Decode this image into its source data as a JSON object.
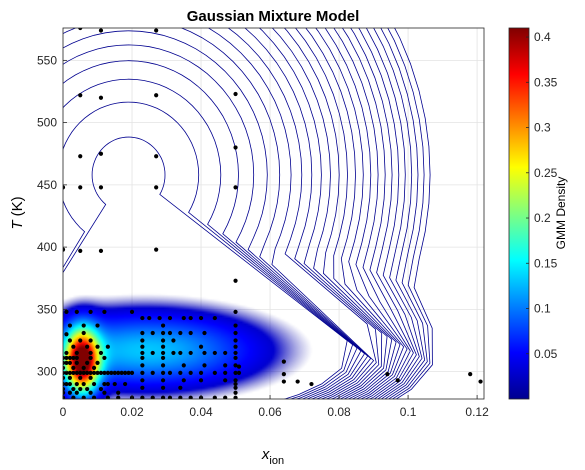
{
  "chart_data": {
    "type": "scatter",
    "title": "Gaussian Mixture Model",
    "xlabel_main": "x",
    "xlabel_sub": "ion",
    "ylabel_main": "T",
    "ylabel_unit": " (K)",
    "colorbar_label": "GMM Density",
    "xlim": [
      0,
      0.122
    ],
    "ylim": [
      278,
      576
    ],
    "x_ticks": [
      0,
      0.02,
      0.04,
      0.06,
      0.08,
      0.1,
      0.12
    ],
    "x_tick_labels": [
      "0",
      "0.02",
      "0.04",
      "0.06",
      "0.08",
      "0.1",
      "0.12"
    ],
    "y_ticks": [
      300,
      350,
      400,
      450,
      500,
      550
    ],
    "y_tick_labels": [
      "300",
      "350",
      "400",
      "450",
      "500",
      "550"
    ],
    "colorbar_ticks": [
      0.05,
      0.1,
      0.15,
      0.2,
      0.25,
      0.3,
      0.35,
      0.4
    ],
    "colorbar_tick_labels": [
      "0.05",
      "0.1",
      "0.15",
      "0.2",
      "0.25",
      "0.3",
      "0.35",
      "0.4"
    ],
    "colorbar_range": [
      0,
      0.41
    ],
    "colormap": "jet",
    "contour_color": "#00008f",
    "point_color": "#000000",
    "grid": true,
    "density_components": [
      {
        "mu_x": 0.0055,
        "mu_y": 308,
        "sx": 0.0033,
        "sy": 17,
        "peak": 0.4
      },
      {
        "mu_x": 0.024,
        "mu_y": 317,
        "sx": 0.022,
        "sy": 20,
        "peak": 0.13
      },
      {
        "mu_x": 0.019,
        "mu_y": 458,
        "sx": 0.033,
        "sy": 95,
        "peak": 0.004
      }
    ],
    "points": [
      [
        0.005,
        576
      ],
      [
        0.011,
        574
      ],
      [
        0.027,
        574
      ],
      [
        0.005,
        522
      ],
      [
        0.011,
        520
      ],
      [
        0.027,
        522
      ],
      [
        0.05,
        523
      ],
      [
        0.005,
        473
      ],
      [
        0.011,
        475
      ],
      [
        0.027,
        473
      ],
      [
        0.05,
        480
      ],
      [
        0,
        448
      ],
      [
        0.005,
        448
      ],
      [
        0.011,
        448
      ],
      [
        0.027,
        448
      ],
      [
        0.05,
        448
      ],
      [
        0,
        398
      ],
      [
        0.005,
        397
      ],
      [
        0.011,
        397
      ],
      [
        0.027,
        398
      ],
      [
        0.05,
        373
      ],
      [
        0.001,
        348
      ],
      [
        0.004,
        348
      ],
      [
        0.008,
        348
      ],
      [
        0.012,
        348
      ],
      [
        0.02,
        348
      ],
      [
        0.023,
        343
      ],
      [
        0.025,
        343
      ],
      [
        0.028,
        343
      ],
      [
        0.031,
        343
      ],
      [
        0.035,
        343
      ],
      [
        0.037,
        343
      ],
      [
        0.04,
        343
      ],
      [
        0.044,
        343
      ],
      [
        0.05,
        348
      ],
      [
        0.002,
        337
      ],
      [
        0.006,
        337
      ],
      [
        0.01,
        337
      ],
      [
        0.029,
        337
      ],
      [
        0.05,
        337
      ],
      [
        0.001,
        330
      ],
      [
        0.006,
        331
      ],
      [
        0.023,
        331
      ],
      [
        0.026,
        331
      ],
      [
        0.029,
        331
      ],
      [
        0.031,
        331
      ],
      [
        0.034,
        331
      ],
      [
        0.037,
        331
      ],
      [
        0.041,
        331
      ],
      [
        0.05,
        331
      ],
      [
        0.002,
        325
      ],
      [
        0.005,
        325
      ],
      [
        0.008,
        325
      ],
      [
        0.023,
        325
      ],
      [
        0.029,
        325
      ],
      [
        0.032,
        325
      ],
      [
        0.05,
        325
      ],
      [
        0.003,
        320
      ],
      [
        0.007,
        320
      ],
      [
        0.01,
        320
      ],
      [
        0.013,
        320
      ],
      [
        0.023,
        320
      ],
      [
        0.029,
        320
      ],
      [
        0.04,
        320
      ],
      [
        0.05,
        320
      ],
      [
        0.001,
        315
      ],
      [
        0.004,
        315
      ],
      [
        0.008,
        315
      ],
      [
        0.011,
        315
      ],
      [
        0.023,
        315
      ],
      [
        0.026,
        315
      ],
      [
        0.029,
        315
      ],
      [
        0.032,
        315
      ],
      [
        0.034,
        315
      ],
      [
        0.037,
        315
      ],
      [
        0.041,
        315
      ],
      [
        0.044,
        315
      ],
      [
        0.047,
        315
      ],
      [
        0.05,
        315
      ],
      [
        0,
        311
      ],
      [
        0.001,
        311
      ],
      [
        0.002,
        311
      ],
      [
        0.003,
        311
      ],
      [
        0.004,
        311
      ],
      [
        0.008,
        311
      ],
      [
        0.012,
        311
      ],
      [
        0.023,
        311
      ],
      [
        0.029,
        311
      ],
      [
        0.05,
        311
      ],
      [
        0,
        307
      ],
      [
        0.001,
        307
      ],
      [
        0.002,
        307
      ],
      [
        0.004,
        307
      ],
      [
        0.007,
        307
      ],
      [
        0.01,
        307
      ],
      [
        0.023,
        305
      ],
      [
        0.029,
        305
      ],
      [
        0.035,
        305
      ],
      [
        0.041,
        305
      ],
      [
        0.047,
        305
      ],
      [
        0.05,
        305
      ],
      [
        0.051,
        304
      ],
      [
        0,
        303
      ],
      [
        0.003,
        303
      ],
      [
        0.006,
        303
      ],
      [
        0.009,
        303
      ],
      [
        0,
        299
      ],
      [
        0.001,
        299
      ],
      [
        0.002,
        299
      ],
      [
        0.003,
        299
      ],
      [
        0.004,
        299
      ],
      [
        0.005,
        299
      ],
      [
        0.006,
        299
      ],
      [
        0.007,
        299
      ],
      [
        0.008,
        299
      ],
      [
        0.009,
        299
      ],
      [
        0.01,
        299
      ],
      [
        0.011,
        299
      ],
      [
        0.012,
        299
      ],
      [
        0.013,
        299
      ],
      [
        0.014,
        299
      ],
      [
        0.015,
        299
      ],
      [
        0.016,
        299
      ],
      [
        0.017,
        299
      ],
      [
        0.018,
        299
      ],
      [
        0.019,
        299
      ],
      [
        0.02,
        299
      ],
      [
        0.023,
        299
      ],
      [
        0.026,
        299
      ],
      [
        0.029,
        299
      ],
      [
        0.031,
        299
      ],
      [
        0.034,
        299
      ],
      [
        0.037,
        299
      ],
      [
        0.04,
        299
      ],
      [
        0.044,
        299
      ],
      [
        0.047,
        299
      ],
      [
        0.05,
        299
      ],
      [
        0.051,
        299
      ],
      [
        0,
        295
      ],
      [
        0.002,
        295
      ],
      [
        0.005,
        295
      ],
      [
        0.008,
        295
      ],
      [
        0.023,
        293
      ],
      [
        0.029,
        293
      ],
      [
        0.035,
        293
      ],
      [
        0.04,
        293
      ],
      [
        0.047,
        293
      ],
      [
        0.05,
        293
      ],
      [
        0,
        290
      ],
      [
        0.001,
        290
      ],
      [
        0.002,
        290
      ],
      [
        0.004,
        290
      ],
      [
        0.006,
        290
      ],
      [
        0.009,
        290
      ],
      [
        0.012,
        290
      ],
      [
        0.013,
        290
      ],
      [
        0.015,
        290
      ],
      [
        0.018,
        290
      ],
      [
        0.05,
        290
      ],
      [
        0,
        286
      ],
      [
        0.003,
        286
      ],
      [
        0.005,
        286
      ],
      [
        0.007,
        286
      ],
      [
        0.011,
        286
      ],
      [
        0.023,
        287
      ],
      [
        0.029,
        287
      ],
      [
        0.034,
        287
      ],
      [
        0.05,
        287
      ],
      [
        0,
        283
      ],
      [
        0.002,
        283
      ],
      [
        0.004,
        283
      ],
      [
        0.008,
        283
      ],
      [
        0.012,
        283
      ],
      [
        0.016,
        283
      ],
      [
        0.05,
        283
      ],
      [
        0,
        279
      ],
      [
        0.003,
        279
      ],
      [
        0.006,
        279
      ],
      [
        0.009,
        279
      ],
      [
        0.013,
        279
      ],
      [
        0.016,
        279
      ],
      [
        0.02,
        279
      ],
      [
        0.023,
        279
      ],
      [
        0.026,
        279
      ],
      [
        0.029,
        279
      ],
      [
        0.031,
        279
      ],
      [
        0.034,
        279
      ],
      [
        0.037,
        279
      ],
      [
        0.04,
        279
      ],
      [
        0.044,
        279
      ],
      [
        0.047,
        279
      ],
      [
        0.05,
        279
      ],
      [
        0.064,
        308
      ],
      [
        0.064,
        298
      ],
      [
        0.064,
        292
      ],
      [
        0.068,
        292
      ],
      [
        0.072,
        290
      ],
      [
        0.094,
        298
      ],
      [
        0.097,
        293
      ],
      [
        0.118,
        298
      ],
      [
        0.121,
        292
      ]
    ]
  }
}
